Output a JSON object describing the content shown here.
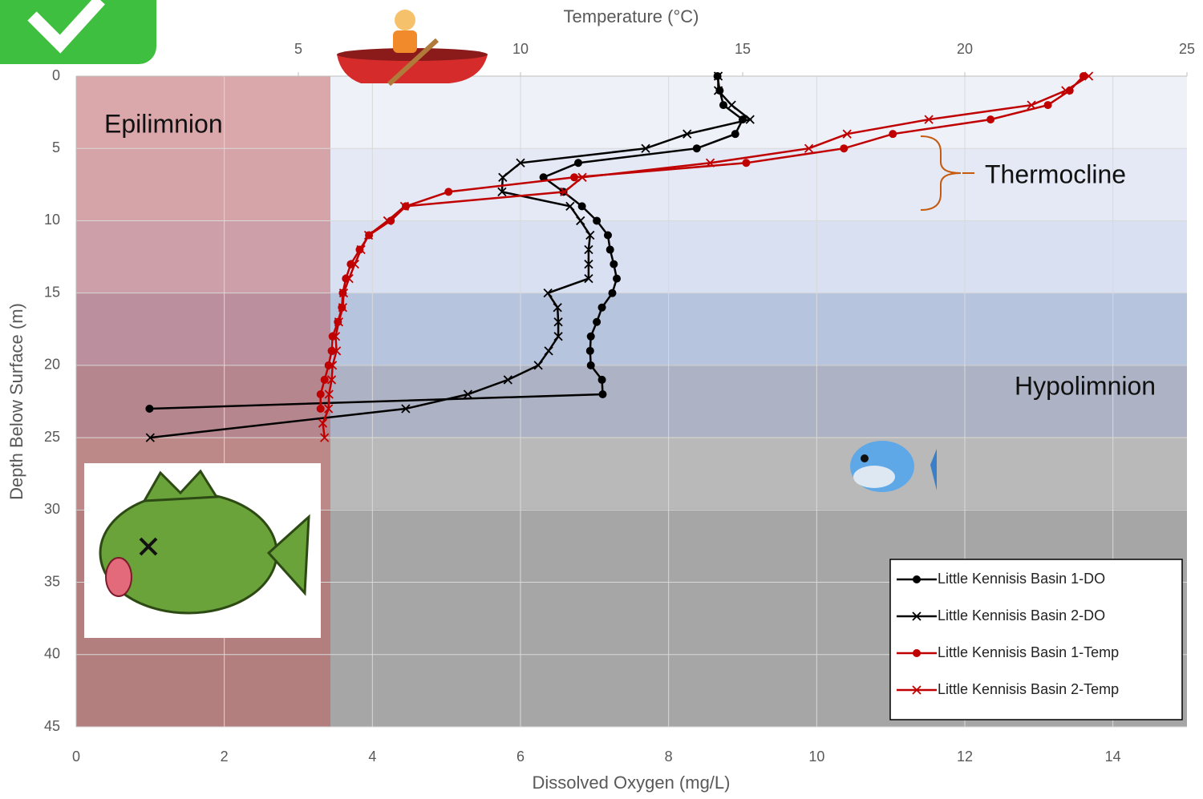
{
  "chart_data": {
    "type": "line",
    "x_label": "Dissolved Oxygen (mg/L)",
    "x2_label": "Temperature (°C)",
    "y_label": "Depth Below Surface (m)",
    "xlim": [
      0,
      15
    ],
    "xticks": [
      0,
      2,
      4,
      6,
      8,
      10,
      12,
      14
    ],
    "x2lim": [
      0,
      25
    ],
    "x2ticks": [
      5,
      10,
      15,
      20,
      25
    ],
    "ylim": [
      0,
      45
    ],
    "yticks": [
      0,
      5,
      10,
      15,
      20,
      25,
      30,
      35,
      40,
      45
    ],
    "y_inverted": true,
    "grid": true,
    "legend": "lower right",
    "annotations": [
      "Epilimnion",
      "Thermocline",
      "Hypolimnion"
    ],
    "series": [
      {
        "name": "Little Kennisis Basin 1-DO",
        "color": "#000000",
        "marker": "circle",
        "axis": "x",
        "depths": [
          0,
          1,
          2,
          3,
          4,
          5,
          6,
          7,
          8,
          9,
          10,
          11,
          12,
          13,
          14,
          15,
          16,
          17,
          18,
          19,
          20,
          21,
          22,
          23
        ],
        "values": [
          8.66,
          8.69,
          8.74,
          9.0,
          8.9,
          8.38,
          6.78,
          6.31,
          6.58,
          6.83,
          7.03,
          7.18,
          7.21,
          7.26,
          7.3,
          7.24,
          7.1,
          7.03,
          6.95,
          6.94,
          6.95,
          7.1,
          7.11,
          0.99
        ]
      },
      {
        "name": "Little Kennisis Basin 2-DO",
        "color": "#000000",
        "marker": "x",
        "axis": "x",
        "depths": [
          0,
          1,
          2,
          3,
          4,
          5,
          6,
          7,
          8,
          9,
          10,
          11,
          12,
          13,
          14,
          15,
          16,
          17,
          18,
          19,
          20,
          21,
          22,
          23,
          25
        ],
        "values": [
          8.67,
          8.67,
          8.85,
          9.1,
          8.25,
          7.69,
          6.0,
          5.76,
          5.75,
          6.67,
          6.81,
          6.94,
          6.92,
          6.92,
          6.92,
          6.37,
          6.5,
          6.51,
          6.51,
          6.38,
          6.24,
          5.83,
          5.29,
          4.45,
          1.0
        ]
      },
      {
        "name": "Little Kennisis Basin 1-Temp",
        "color": "#c00000",
        "marker": "circle",
        "axis": "x2",
        "depths": [
          0,
          1,
          2,
          3,
          4,
          5,
          6,
          7,
          8,
          9,
          10,
          11,
          12,
          13,
          14,
          15,
          16,
          17,
          18,
          19,
          20,
          21,
          22,
          23
        ],
        "values": [
          22.67,
          22.36,
          21.87,
          20.58,
          18.38,
          17.28,
          15.08,
          11.21,
          8.38,
          7.42,
          7.08,
          6.59,
          6.38,
          6.18,
          6.07,
          6.0,
          5.98,
          5.89,
          5.77,
          5.75,
          5.68,
          5.59,
          5.5,
          5.5
        ]
      },
      {
        "name": "Little Kennisis Basin 2-Temp",
        "color": "#c00000",
        "marker": "x",
        "axis": "x2",
        "depths": [
          0,
          1,
          2,
          3,
          4,
          5,
          6,
          7,
          8,
          9,
          10,
          11,
          12,
          13,
          14,
          15,
          16,
          17,
          18,
          19,
          20,
          21,
          22,
          23,
          24,
          25
        ],
        "values": [
          22.79,
          22.27,
          21.5,
          19.19,
          17.35,
          16.49,
          14.27,
          11.39,
          10.99,
          7.39,
          7.01,
          6.58,
          6.41,
          6.27,
          6.14,
          6.02,
          6.0,
          5.91,
          5.84,
          5.86,
          5.77,
          5.75,
          5.69,
          5.68,
          5.55,
          5.59
        ]
      }
    ]
  }
}
